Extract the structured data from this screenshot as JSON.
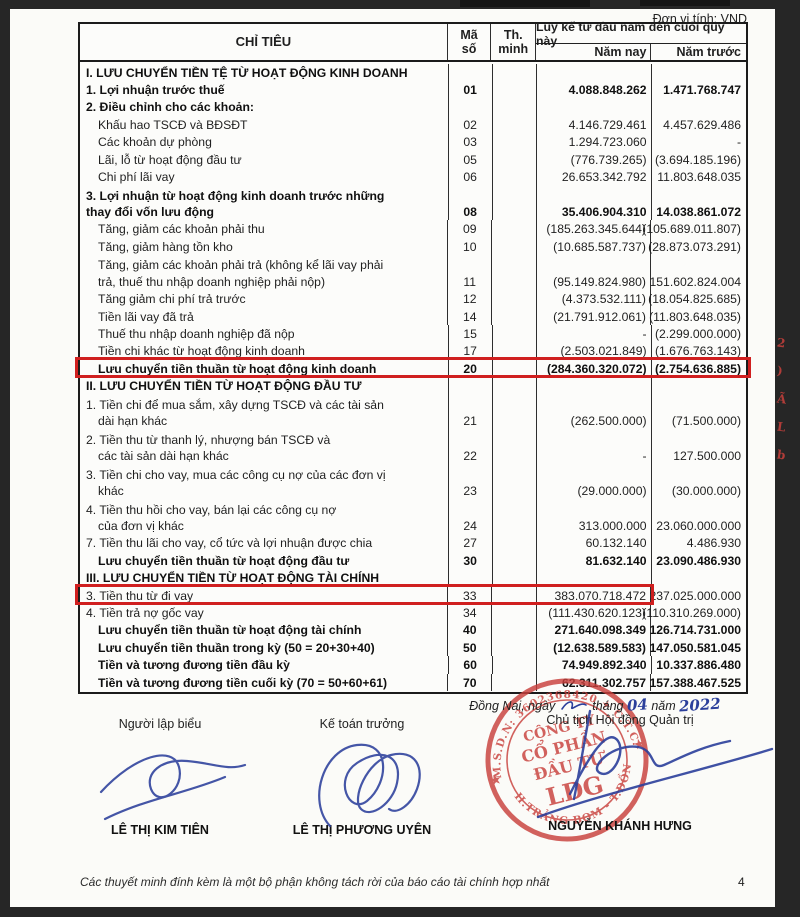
{
  "meta": {
    "unit_label": "Đơn vị tính: VND",
    "page_number": "4",
    "footer_note": "Các thuyết minh đính kèm là một bộ phận không tách rời của báo cáo tài chính hợp nhất",
    "margin_notes": [
      "2",
      ")",
      "Ã",
      "L",
      "b"
    ]
  },
  "colors": {
    "highlight_box": "#d01f1f",
    "stamp_red": "#c9403c",
    "pen_ink": "#2b3f9b",
    "paper": "#fbfbf8",
    "scan_edge": "#262626"
  },
  "table": {
    "header": {
      "col_label": "CHỈ TIÊU",
      "col_code_line1": "Mã",
      "col_code_line2": "số",
      "col_note_line1": "Th.",
      "col_note_line2": "minh",
      "col_span": "Lũy kế từ đầu năm đến cuối quý này",
      "col_current": "Năm nay",
      "col_prior": "Năm trước"
    },
    "rows": [
      {
        "sec": true,
        "label": "I. LƯU CHUYỂN TIỀN TỆ TỪ HOẠT ĐỘNG KINH DOANH"
      },
      {
        "b": true,
        "label": "1. Lợi nhuận trước thuế",
        "code": "01",
        "cur": "4.088.848.262",
        "prior": "1.471.768.747"
      },
      {
        "b": true,
        "label": "2. Điều chỉnh cho các khoản:"
      },
      {
        "ind": 1,
        "label": "Khấu hao TSCĐ và BĐSĐT",
        "code": "02",
        "cur": "4.146.729.461",
        "prior": "4.457.629.486"
      },
      {
        "ind": 1,
        "label": "Các khoản dự phòng",
        "code": "03",
        "cur": "1.294.723.060",
        "prior": "-"
      },
      {
        "ind": 1,
        "label": "Lãi, lỗ từ hoạt động đầu tư",
        "code": "05",
        "cur": "(776.739.265)",
        "prior": "(3.694.185.196)"
      },
      {
        "ind": 1,
        "label": "Chi phí lãi vay",
        "code": "06",
        "cur": "26.653.342.792",
        "prior": "11.803.648.035"
      },
      {
        "b": true,
        "label": "3. Lợi nhuận từ hoạt động kinh doanh trước những",
        "label2": "thay đổi vốn lưu động",
        "code": "08",
        "cur": "35.406.904.310",
        "prior": "14.038.861.072"
      },
      {
        "ind": 1,
        "label": "Tăng, giảm các khoản phải thu",
        "code": "09",
        "cur": "(185.263.345.644)",
        "prior": "(105.689.011.807)"
      },
      {
        "ind": 1,
        "label": "Tăng, giảm hàng tồn kho",
        "code": "10",
        "cur": "(10.685.587.737)",
        "prior": "(28.873.073.291)"
      },
      {
        "ind": 1,
        "ind2": 1,
        "label": "Tăng, giảm các khoản phải trả (không kể lãi vay phải",
        "label2": "trả, thuế thu nhập doanh nghiệp phải nộp)",
        "code": "11",
        "cur": "(95.149.824.980)",
        "prior": "151.602.824.004"
      },
      {
        "ind": 1,
        "label": "Tăng giảm chi phí trả trước",
        "code": "12",
        "cur": "(4.373.532.111)",
        "prior": "(18.054.825.685)"
      },
      {
        "ind": 1,
        "label": "Tiền lãi vay đã trả",
        "code": "14",
        "cur": "(21.791.912.061)",
        "prior": "(11.803.648.035)"
      },
      {
        "ind": 1,
        "label": "Thuế thu nhập doanh nghiệp đã nộp",
        "code": "15",
        "cur": "-",
        "prior": "(2.299.000.000)"
      },
      {
        "ind": 1,
        "label": "Tiền chi khác từ hoạt động kinh doanh",
        "code": "17",
        "cur": "(2.503.021.849)",
        "prior": "(1.676.763.143)"
      },
      {
        "b": true,
        "ind": 1,
        "hl": "full",
        "label": "Lưu chuyển tiền thuần từ hoạt động kinh doanh",
        "code": "20",
        "cur": "(284.360.320.072)",
        "prior": "(2.754.636.885)"
      },
      {
        "sec": true,
        "label": "II. LƯU CHUYỂN TIỀN TỪ HOẠT ĐỘNG ĐẦU TƯ"
      },
      {
        "ind2": 1,
        "label": "1. Tiền chi để mua sắm, xây dựng TSCĐ và các tài sản",
        "label2": "dài hạn khác",
        "code": "21",
        "cur": "(262.500.000)",
        "prior": "(71.500.000)"
      },
      {
        "ind2": 1,
        "label": "2. Tiền thu từ thanh lý, nhượng bán TSCĐ và",
        "label2": "các tài sản dài hạn khác",
        "code": "22",
        "cur": "-",
        "prior": "127.500.000"
      },
      {
        "ind2": 1,
        "label": "3. Tiền chi cho vay, mua các công cụ nợ của các đơn vị",
        "label2": "khác",
        "code": "23",
        "cur": "(29.000.000)",
        "prior": "(30.000.000)"
      },
      {
        "ind2": 1,
        "label": "4. Tiền thu hồi cho vay, bán lại các công cụ nợ",
        "label2": "của đơn vị khác",
        "code": "24",
        "cur": "313.000.000",
        "prior": "23.060.000.000"
      },
      {
        "label": "7. Tiền thu lãi cho vay, cổ tức và lợi nhuận được chia",
        "code": "27",
        "cur": "60.132.140",
        "prior": "4.486.930"
      },
      {
        "b": true,
        "ind": 1,
        "label": "Lưu chuyển tiền thuần từ hoạt động đầu tư",
        "code": "30",
        "cur": "81.632.140",
        "prior": "23.090.486.930"
      },
      {
        "sec": true,
        "label": "III. LƯU CHUYỂN TIỀN TỪ HOẠT ĐỘNG TÀI CHÍNH"
      },
      {
        "hl": "part",
        "label": "3. Tiền thu từ đi vay",
        "code": "33",
        "cur": "383.070.718.472",
        "prior": "237.025.000.000"
      },
      {
        "label": "4. Tiền trả nợ gốc vay",
        "code": "34",
        "cur": "(111.430.620.123)",
        "prior": "(110.310.269.000)"
      },
      {
        "b": true,
        "ind": 1,
        "label": "Lưu chuyển tiền thuần từ hoạt động tài chính",
        "code": "40",
        "cur": "271.640.098.349",
        "prior": "126.714.731.000"
      },
      {
        "b": true,
        "ind": 1,
        "label": "Lưu chuyển tiền thuần trong kỳ (50 = 20+30+40)",
        "code": "50",
        "cur": "(12.638.589.583)",
        "prior": "147.050.581.045"
      },
      {
        "b": true,
        "ind": 1,
        "label": "Tiền và tương đương tiền đầu kỳ",
        "code": "60",
        "cur": "74.949.892.340",
        "prior": "10.337.886.480"
      },
      {
        "b": true,
        "ind": 1,
        "label": "Tiền và tương đương tiền cuối kỳ (70 = 50+60+61)",
        "code": "70",
        "cur": "62.311.302.757",
        "prior": "157.388.467.525"
      }
    ]
  },
  "signoff": {
    "date_line": {
      "prefix": "Đồng Nai, ngày",
      "month_label": "tháng",
      "month": "04",
      "year_label": "năm",
      "year": "2022"
    },
    "blocks": [
      {
        "title": "Người lập biểu",
        "name": "LÊ THỊ KIM TIÊN"
      },
      {
        "title": "Kế toán trưởng",
        "name": "LÊ THỊ PHƯƠNG UYÊN"
      },
      {
        "title": "Chủ tịch Hội đồng Quản trị",
        "name": "NGUYỄN KHÁNH HƯNG"
      }
    ],
    "stamp": {
      "arc_top": "M.S.D.N: 3602368420 ✦ C.T.C.P",
      "line1": "CÔNG TY",
      "line2": "CỔ PHẦN",
      "line3": "ĐẦU TƯ",
      "line4": "LDG",
      "arc_bottom": "H.TRẢNG BOM - T.ĐỒNG NAI"
    }
  }
}
